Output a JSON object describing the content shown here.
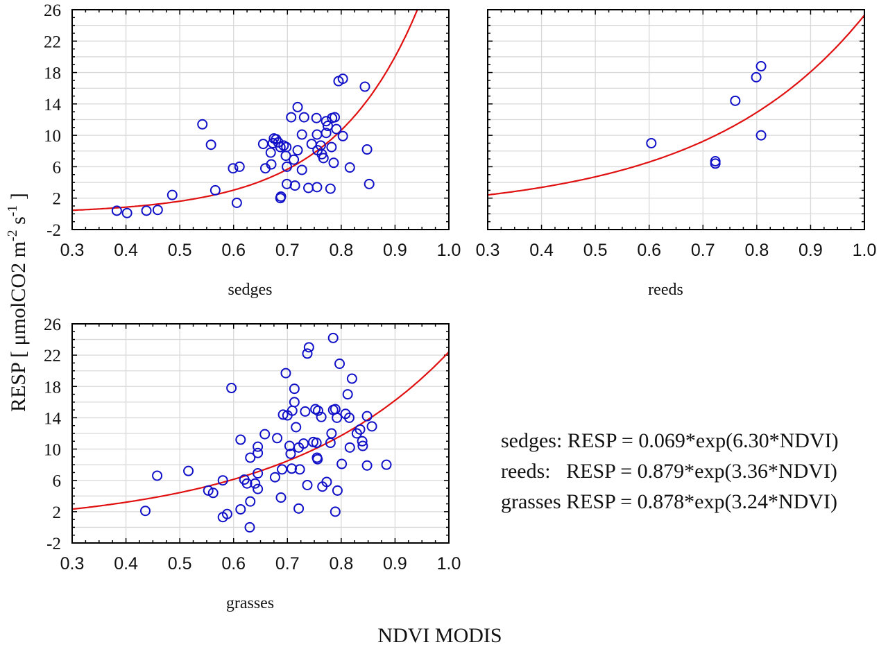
{
  "chart_data": {
    "type": "scatter",
    "ylabel": "RESP  [ μmolCO2 m-2 s-1 ]",
    "ylabel_parts": {
      "main": "RESP  [ μmolCO2 m",
      "sup1": "-2",
      "mid": " s",
      "sup2": "-1",
      "end": " ]"
    },
    "xlabel": "NDVI MODIS",
    "marker": "open-circle",
    "marker_color": "#1010c8",
    "fit_color": "#e01010",
    "grid": true,
    "xlim": [
      0.3,
      1.0
    ],
    "ylim": [
      -2,
      26
    ],
    "xticks": [
      "0.3",
      "0.4",
      "0.5",
      "0.6",
      "0.7",
      "0.8",
      "0.9",
      "1.0"
    ],
    "yticks": [
      "-2",
      "2",
      "6",
      "10",
      "14",
      "18",
      "22",
      "26"
    ],
    "panels": [
      {
        "name": "sedges",
        "label": "sedges",
        "show_yticks": true,
        "fit": {
          "a": 0.069,
          "b": 6.3
        },
        "points": [
          [
            0.383,
            0.4
          ],
          [
            0.402,
            0.1
          ],
          [
            0.438,
            0.4
          ],
          [
            0.459,
            0.5
          ],
          [
            0.486,
            2.4
          ],
          [
            0.542,
            11.4
          ],
          [
            0.558,
            8.8
          ],
          [
            0.566,
            3.0
          ],
          [
            0.599,
            5.8
          ],
          [
            0.611,
            6.0
          ],
          [
            0.606,
            1.4
          ],
          [
            0.655,
            8.9
          ],
          [
            0.659,
            5.8
          ],
          [
            0.669,
            7.8
          ],
          [
            0.67,
            6.3
          ],
          [
            0.673,
            9.0
          ],
          [
            0.675,
            9.6
          ],
          [
            0.679,
            9.5
          ],
          [
            0.683,
            9.1
          ],
          [
            0.687,
            8.5
          ],
          [
            0.687,
            2.0
          ],
          [
            0.688,
            2.2
          ],
          [
            0.693,
            8.7
          ],
          [
            0.698,
            8.5
          ],
          [
            0.699,
            6.0
          ],
          [
            0.697,
            7.4
          ],
          [
            0.699,
            3.8
          ],
          [
            0.707,
            12.3
          ],
          [
            0.712,
            6.9
          ],
          [
            0.714,
            3.6
          ],
          [
            0.719,
            13.6
          ],
          [
            0.719,
            8.1
          ],
          [
            0.727,
            10.1
          ],
          [
            0.727,
            5.6
          ],
          [
            0.731,
            12.3
          ],
          [
            0.739,
            3.3
          ],
          [
            0.745,
            8.9
          ],
          [
            0.754,
            12.2
          ],
          [
            0.755,
            10.1
          ],
          [
            0.755,
            3.4
          ],
          [
            0.756,
            8.1
          ],
          [
            0.762,
            8.7
          ],
          [
            0.764,
            7.6
          ],
          [
            0.767,
            7.1
          ],
          [
            0.772,
            11.8
          ],
          [
            0.772,
            10.3
          ],
          [
            0.775,
            11.2
          ],
          [
            0.78,
            3.2
          ],
          [
            0.782,
            8.5
          ],
          [
            0.783,
            12.2
          ],
          [
            0.786,
            6.5
          ],
          [
            0.788,
            12.3
          ],
          [
            0.791,
            10.8
          ],
          [
            0.795,
            16.9
          ],
          [
            0.803,
            17.2
          ],
          [
            0.803,
            9.9
          ],
          [
            0.816,
            5.9
          ],
          [
            0.844,
            16.2
          ],
          [
            0.848,
            8.2
          ],
          [
            0.852,
            3.8
          ]
        ]
      },
      {
        "name": "reeds",
        "label": "reeds",
        "show_yticks": false,
        "fit": {
          "a": 0.879,
          "b": 3.36
        },
        "points": [
          [
            0.604,
            9.0
          ],
          [
            0.723,
            6.7
          ],
          [
            0.723,
            6.4
          ],
          [
            0.76,
            14.4
          ],
          [
            0.799,
            17.4
          ],
          [
            0.808,
            18.8
          ],
          [
            0.808,
            10.0
          ]
        ]
      },
      {
        "name": "grasses",
        "label": "grasses",
        "show_yticks": true,
        "fit": {
          "a": 0.878,
          "b": 3.24
        },
        "points": [
          [
            0.436,
            2.1
          ],
          [
            0.458,
            6.6
          ],
          [
            0.516,
            7.2
          ],
          [
            0.553,
            4.7
          ],
          [
            0.562,
            4.4
          ],
          [
            0.58,
            6.0
          ],
          [
            0.58,
            1.3
          ],
          [
            0.588,
            1.7
          ],
          [
            0.596,
            17.8
          ],
          [
            0.613,
            11.2
          ],
          [
            0.613,
            2.3
          ],
          [
            0.62,
            6.1
          ],
          [
            0.625,
            5.6
          ],
          [
            0.631,
            8.9
          ],
          [
            0.631,
            3.3
          ],
          [
            0.63,
            0.0
          ],
          [
            0.64,
            5.6
          ],
          [
            0.645,
            10.3
          ],
          [
            0.645,
            9.5
          ],
          [
            0.645,
            6.9
          ],
          [
            0.645,
            4.9
          ],
          [
            0.658,
            11.9
          ],
          [
            0.677,
            6.4
          ],
          [
            0.681,
            11.4
          ],
          [
            0.688,
            3.8
          ],
          [
            0.69,
            7.4
          ],
          [
            0.692,
            14.4
          ],
          [
            0.697,
            19.7
          ],
          [
            0.7,
            14.3
          ],
          [
            0.704,
            10.4
          ],
          [
            0.706,
            9.4
          ],
          [
            0.708,
            7.5
          ],
          [
            0.709,
            14.9
          ],
          [
            0.713,
            17.7
          ],
          [
            0.713,
            16.0
          ],
          [
            0.716,
            12.8
          ],
          [
            0.721,
            10.2
          ],
          [
            0.723,
            7.4
          ],
          [
            0.721,
            2.4
          ],
          [
            0.73,
            10.7
          ],
          [
            0.733,
            14.8
          ],
          [
            0.737,
            22.2
          ],
          [
            0.74,
            23.0
          ],
          [
            0.737,
            5.4
          ],
          [
            0.748,
            10.9
          ],
          [
            0.752,
            15.1
          ],
          [
            0.754,
            10.8
          ],
          [
            0.755,
            8.9
          ],
          [
            0.756,
            8.7
          ],
          [
            0.757,
            14.9
          ],
          [
            0.763,
            14.1
          ],
          [
            0.765,
            5.2
          ],
          [
            0.773,
            5.8
          ],
          [
            0.78,
            10.8
          ],
          [
            0.782,
            12.0
          ],
          [
            0.785,
            24.2
          ],
          [
            0.785,
            15.0
          ],
          [
            0.789,
            15.1
          ],
          [
            0.789,
            2.0
          ],
          [
            0.792,
            14.0
          ],
          [
            0.793,
            4.7
          ],
          [
            0.797,
            20.9
          ],
          [
            0.801,
            8.1
          ],
          [
            0.808,
            14.5
          ],
          [
            0.812,
            17.0
          ],
          [
            0.815,
            14.0
          ],
          [
            0.816,
            10.2
          ],
          [
            0.82,
            19.0
          ],
          [
            0.829,
            12.0
          ],
          [
            0.835,
            12.5
          ],
          [
            0.839,
            11.0
          ],
          [
            0.84,
            10.4
          ],
          [
            0.848,
            14.2
          ],
          [
            0.848,
            7.9
          ],
          [
            0.857,
            12.9
          ],
          [
            0.884,
            8.0
          ]
        ]
      }
    ],
    "annotations": [
      "sedges: RESP = 0.069*exp(6.30*NDVI)",
      "reeds:   RESP = 0.879*exp(3.36*NDVI)",
      "grasses RESP = 0.878*exp(3.24*NDVI)"
    ]
  }
}
